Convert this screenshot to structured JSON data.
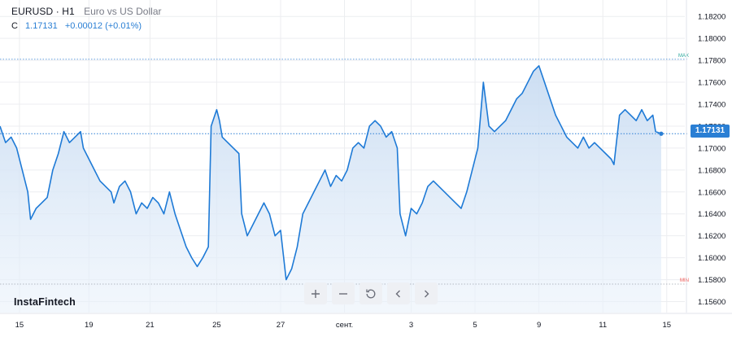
{
  "header": {
    "symbol": "EURUSD · H1",
    "description": "Euro vs US Dollar"
  },
  "ohlc": {
    "label": "C",
    "close": "1.17131",
    "change": "+0.00012 (+0.01%)"
  },
  "brand": {
    "logo_text": "InstaFintech"
  },
  "toolbar": [
    {
      "name": "zoom-in-button",
      "icon": "plus-icon"
    },
    {
      "name": "zoom-out-button",
      "icon": "minus-icon"
    },
    {
      "name": "reset-button",
      "icon": "reset-icon"
    },
    {
      "name": "scroll-left-button",
      "icon": "chevron-left-icon"
    },
    {
      "name": "scroll-right-button",
      "icon": "chevron-right-icon"
    }
  ],
  "colors": {
    "line": "#1e7ad6",
    "accent": "#2a7fd4",
    "max": "#26a69a",
    "min": "#ef5350",
    "grid": "#ecedf0"
  },
  "chart_data": {
    "type": "area",
    "title": "EURUSD · H1",
    "xlabel": "",
    "ylabel": "",
    "ylim": [
      1.155,
      1.1835
    ],
    "y_ticks": [
      "1.18200",
      "1.18000",
      "1.17800",
      "1.17600",
      "1.17400",
      "1.17200",
      "1.17000",
      "1.16800",
      "1.16600",
      "1.16400",
      "1.16200",
      "1.16000",
      "1.15800",
      "1.15600"
    ],
    "x_ticks": [
      {
        "label": "15",
        "x": 0.7
      },
      {
        "label": "19",
        "x": 3.2
      },
      {
        "label": "21",
        "x": 5.4
      },
      {
        "label": "25",
        "x": 7.8
      },
      {
        "label": "27",
        "x": 10.1
      },
      {
        "label": "сент.",
        "x": 12.4
      },
      {
        "label": "3",
        "x": 14.8
      },
      {
        "label": "5",
        "x": 17.1
      },
      {
        "label": "9",
        "x": 19.4
      },
      {
        "label": "11",
        "x": 21.7
      },
      {
        "label": "15",
        "x": 24.0
      }
    ],
    "max_label": "MAX",
    "min_label": "MIN",
    "max_value": 1.1781,
    "min_value": 1.1576,
    "last_value": 1.17131,
    "last_label": "1.17131",
    "grid": true,
    "series": [
      {
        "values": [
          [
            0.0,
            1.172
          ],
          [
            0.2,
            1.1705
          ],
          [
            0.4,
            1.171
          ],
          [
            0.6,
            1.17
          ],
          [
            0.8,
            1.168
          ],
          [
            1.0,
            1.166
          ],
          [
            1.1,
            1.1635
          ],
          [
            1.3,
            1.1645
          ],
          [
            1.5,
            1.165
          ],
          [
            1.7,
            1.1655
          ],
          [
            1.9,
            1.168
          ],
          [
            2.1,
            1.1695
          ],
          [
            2.3,
            1.1715
          ],
          [
            2.5,
            1.1705
          ],
          [
            2.7,
            1.171
          ],
          [
            2.9,
            1.1715
          ],
          [
            3.0,
            1.17
          ],
          [
            3.2,
            1.169
          ],
          [
            3.4,
            1.168
          ],
          [
            3.6,
            1.167
          ],
          [
            3.8,
            1.1665
          ],
          [
            4.0,
            1.166
          ],
          [
            4.1,
            1.165
          ],
          [
            4.3,
            1.1665
          ],
          [
            4.5,
            1.167
          ],
          [
            4.7,
            1.166
          ],
          [
            4.9,
            1.164
          ],
          [
            5.1,
            1.165
          ],
          [
            5.3,
            1.1645
          ],
          [
            5.5,
            1.1655
          ],
          [
            5.7,
            1.165
          ],
          [
            5.9,
            1.164
          ],
          [
            6.1,
            1.166
          ],
          [
            6.3,
            1.164
          ],
          [
            6.5,
            1.1625
          ],
          [
            6.7,
            1.161
          ],
          [
            6.9,
            1.16
          ],
          [
            7.1,
            1.1592
          ],
          [
            7.3,
            1.16
          ],
          [
            7.5,
            1.161
          ],
          [
            7.6,
            1.172
          ],
          [
            7.8,
            1.1735
          ],
          [
            7.9,
            1.1725
          ],
          [
            8.0,
            1.171
          ],
          [
            8.2,
            1.1705
          ],
          [
            8.4,
            1.17
          ],
          [
            8.6,
            1.1695
          ],
          [
            8.7,
            1.164
          ],
          [
            8.9,
            1.162
          ],
          [
            9.1,
            1.163
          ],
          [
            9.3,
            1.164
          ],
          [
            9.5,
            1.165
          ],
          [
            9.7,
            1.164
          ],
          [
            9.9,
            1.162
          ],
          [
            10.1,
            1.1625
          ],
          [
            10.3,
            1.158
          ],
          [
            10.5,
            1.159
          ],
          [
            10.7,
            1.161
          ],
          [
            10.9,
            1.164
          ],
          [
            11.1,
            1.165
          ],
          [
            11.3,
            1.166
          ],
          [
            11.5,
            1.167
          ],
          [
            11.7,
            1.168
          ],
          [
            11.9,
            1.1665
          ],
          [
            12.1,
            1.1675
          ],
          [
            12.3,
            1.167
          ],
          [
            12.5,
            1.168
          ],
          [
            12.7,
            1.17
          ],
          [
            12.9,
            1.1705
          ],
          [
            13.1,
            1.17
          ],
          [
            13.3,
            1.172
          ],
          [
            13.5,
            1.1725
          ],
          [
            13.7,
            1.172
          ],
          [
            13.9,
            1.171
          ],
          [
            14.1,
            1.1715
          ],
          [
            14.3,
            1.17
          ],
          [
            14.4,
            1.164
          ],
          [
            14.6,
            1.162
          ],
          [
            14.8,
            1.1645
          ],
          [
            15.0,
            1.164
          ],
          [
            15.2,
            1.165
          ],
          [
            15.4,
            1.1665
          ],
          [
            15.6,
            1.167
          ],
          [
            15.8,
            1.1665
          ],
          [
            16.0,
            1.166
          ],
          [
            16.2,
            1.1655
          ],
          [
            16.4,
            1.165
          ],
          [
            16.6,
            1.1645
          ],
          [
            16.8,
            1.166
          ],
          [
            17.0,
            1.168
          ],
          [
            17.2,
            1.17
          ],
          [
            17.4,
            1.176
          ],
          [
            17.6,
            1.172
          ],
          [
            17.8,
            1.1715
          ],
          [
            18.0,
            1.172
          ],
          [
            18.2,
            1.1725
          ],
          [
            18.4,
            1.1735
          ],
          [
            18.6,
            1.1745
          ],
          [
            18.8,
            1.175
          ],
          [
            19.0,
            1.176
          ],
          [
            19.2,
            1.177
          ],
          [
            19.4,
            1.1775
          ],
          [
            19.6,
            1.176
          ],
          [
            19.8,
            1.1745
          ],
          [
            20.0,
            1.173
          ],
          [
            20.2,
            1.172
          ],
          [
            20.4,
            1.171
          ],
          [
            20.6,
            1.1705
          ],
          [
            20.8,
            1.17
          ],
          [
            21.0,
            1.171
          ],
          [
            21.2,
            1.17
          ],
          [
            21.4,
            1.1705
          ],
          [
            21.6,
            1.17
          ],
          [
            21.8,
            1.1695
          ],
          [
            22.0,
            1.169
          ],
          [
            22.1,
            1.1685
          ],
          [
            22.3,
            1.173
          ],
          [
            22.5,
            1.1735
          ],
          [
            22.7,
            1.173
          ],
          [
            22.9,
            1.1725
          ],
          [
            23.1,
            1.1735
          ],
          [
            23.3,
            1.1725
          ],
          [
            23.5,
            1.173
          ],
          [
            23.6,
            1.1715
          ],
          [
            23.8,
            1.17131
          ]
        ]
      }
    ]
  }
}
